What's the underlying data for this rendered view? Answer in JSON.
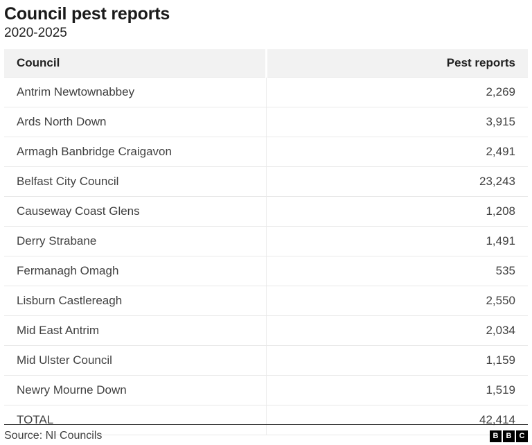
{
  "header": {
    "title": "Council pest reports",
    "subtitle": "2020-2025"
  },
  "table": {
    "columns": [
      "Council",
      "Pest reports"
    ],
    "rows": [
      {
        "council": "Antrim Newtownabbey",
        "value": "2,269"
      },
      {
        "council": "Ards North Down",
        "value": "3,915"
      },
      {
        "council": "Armagh Banbridge Craigavon",
        "value": "2,491"
      },
      {
        "council": "Belfast City Council",
        "value": "23,243"
      },
      {
        "council": "Causeway Coast Glens",
        "value": "1,208"
      },
      {
        "council": "Derry Strabane",
        "value": "1,491"
      },
      {
        "council": "Fermanagh Omagh",
        "value": "535"
      },
      {
        "council": "Lisburn Castlereagh",
        "value": "2,550"
      },
      {
        "council": "Mid East Antrim",
        "value": "2,034"
      },
      {
        "council": "Mid Ulster Council",
        "value": "1,159"
      },
      {
        "council": "Newry Mourne Down",
        "value": "1,519"
      },
      {
        "council": "TOTAL",
        "value": "42,414"
      }
    ]
  },
  "footer": {
    "source": "Source: NI Councils",
    "logo_letters": [
      "B",
      "B",
      "C"
    ]
  },
  "colors": {
    "header_row_bg": "#f2f2f2",
    "row_border": "#e9e9e9",
    "title_text": "#1a1a1a",
    "body_text": "#404040",
    "logo_bg": "#000000"
  },
  "chart_data": {
    "type": "table",
    "title": "Council pest reports",
    "subtitle": "2020-2025",
    "columns": [
      "Council",
      "Pest reports"
    ],
    "categories": [
      "Antrim Newtownabbey",
      "Ards North Down",
      "Armagh Banbridge Craigavon",
      "Belfast City Council",
      "Causeway Coast Glens",
      "Derry Strabane",
      "Fermanagh Omagh",
      "Lisburn Castlereagh",
      "Mid East Antrim",
      "Mid Ulster Council",
      "Newry Mourne Down"
    ],
    "values": [
      2269,
      3915,
      2491,
      23243,
      1208,
      1491,
      535,
      2550,
      2034,
      1159,
      1519
    ],
    "total": 42414,
    "source": "NI Councils"
  }
}
